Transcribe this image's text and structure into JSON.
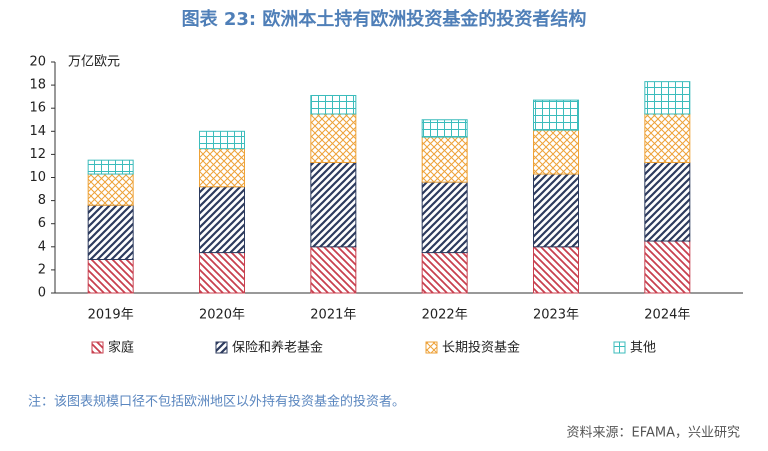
{
  "chart_data": {
    "type": "stacked_bar",
    "title": "图表 23: 欧洲本土持有欧洲投资基金的投资者结构",
    "y_label": "万亿欧元",
    "categories": [
      "2019年",
      "2020年",
      "2021年",
      "2022年",
      "2023年",
      "2024年"
    ],
    "series": [
      {
        "name": "家庭",
        "color": "#c8404f",
        "values": [
          2.9,
          3.5,
          4.0,
          3.5,
          4.0,
          4.5
        ]
      },
      {
        "name": "保险和养老基金",
        "color": "#2d3b5e",
        "values": [
          4.7,
          5.7,
          7.3,
          6.1,
          6.3,
          6.8
        ]
      },
      {
        "name": "长期投资基金",
        "color": "#eea238",
        "values": [
          2.7,
          3.3,
          4.2,
          3.9,
          3.8,
          4.2
        ]
      },
      {
        "name": "其他",
        "color": "#3cbcbc",
        "values": [
          1.2,
          1.5,
          1.6,
          1.5,
          2.6,
          2.8
        ]
      }
    ],
    "ylim": [
      0,
      20
    ],
    "yticks": [
      0,
      2,
      4,
      6,
      8,
      10,
      12,
      14,
      16,
      18,
      20
    ],
    "note": "注：该图表规模口径不包括欧洲地区以外持有投资基金的投资者。",
    "source": "资料来源：EFAMA，兴业研究"
  }
}
